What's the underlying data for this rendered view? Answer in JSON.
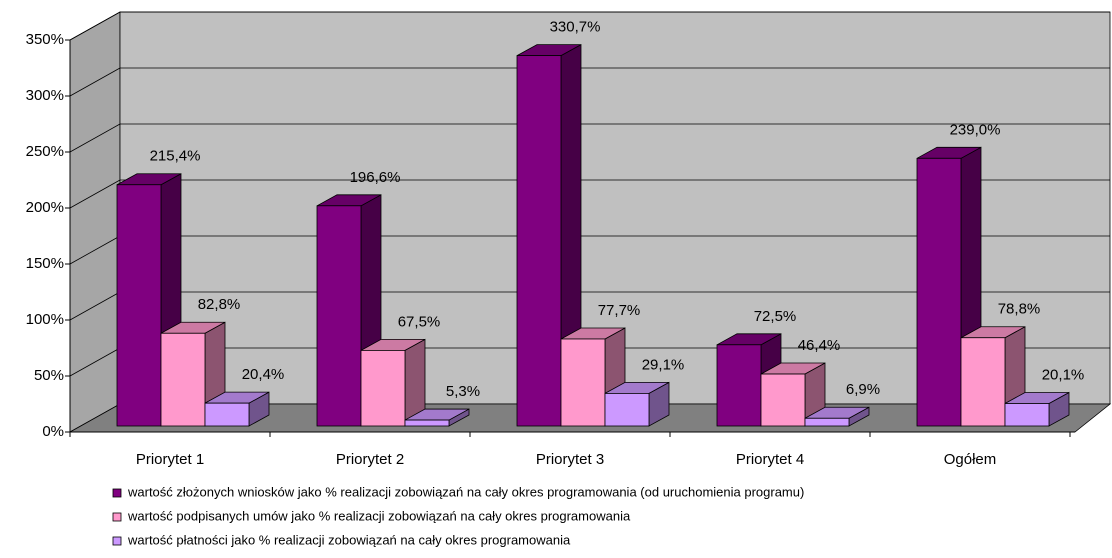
{
  "chart_data": {
    "type": "bar3d",
    "categories": [
      "Priorytet 1",
      "Priorytet 2",
      "Priorytet 3",
      "Priorytet 4",
      "Ogółem"
    ],
    "series": [
      {
        "name": "wartość złożonych wniosków jako % realizacji zobowiązań na cały okres programowania (od uruchomienia programu)",
        "color": "#800080",
        "values": [
          215.4,
          196.6,
          330.7,
          72.5,
          239.0
        ],
        "value_labels": [
          "215,4%",
          "196,6%",
          "330,7%",
          "72,5%",
          "239,0%"
        ]
      },
      {
        "name": "wartość podpisanych umów jako % realizacji zobowiązań na cały okres programowania",
        "color": "#ff99cc",
        "values": [
          82.8,
          67.5,
          77.7,
          46.4,
          78.8
        ],
        "value_labels": [
          "82,8%",
          "67,5%",
          "77,7%",
          "46,4%",
          "78,8%"
        ]
      },
      {
        "name": "wartość płatności jako % realizacji zobowiązań na cały okres programowania",
        "color": "#cc99ff",
        "values": [
          20.4,
          5.3,
          29.1,
          6.9,
          20.1
        ],
        "value_labels": [
          "20,4%",
          "5,3%",
          "29,1%",
          "6,9%",
          "20,1%"
        ]
      }
    ],
    "ylim": [
      0,
      350
    ],
    "yticks": [
      {
        "value": 0,
        "label": "0%"
      },
      {
        "value": 50,
        "label": "50%"
      },
      {
        "value": 100,
        "label": "100%"
      },
      {
        "value": 150,
        "label": "150%"
      },
      {
        "value": 200,
        "label": "200%"
      },
      {
        "value": 250,
        "label": "250%"
      },
      {
        "value": 300,
        "label": "300%"
      },
      {
        "value": 350,
        "label": "350%"
      }
    ],
    "grid": true
  }
}
